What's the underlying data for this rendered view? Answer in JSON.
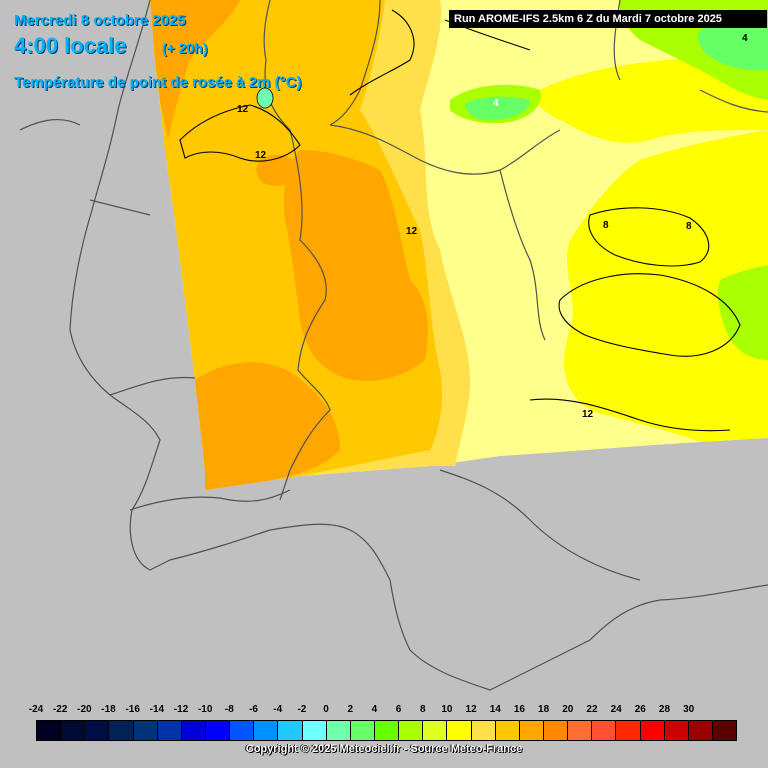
{
  "header": {
    "date": "Mercredi 8 octobre 2025",
    "time": "4:00 locale",
    "lead": "(+ 20h)",
    "parameter": "Température de point de rosée à 2m (°C)"
  },
  "run_banner": "Run AROME-IFS 2.5km 6 Z du Mardi 7 octobre 2025",
  "contour_labels": [
    "12",
    "12",
    "12",
    "12",
    "4",
    "4",
    "8",
    "8"
  ],
  "legend": {
    "ticks": [
      "-24",
      "-22",
      "-20",
      "-18",
      "-16",
      "-14",
      "-12",
      "-10",
      "-8",
      "-6",
      "-4",
      "-2",
      "0",
      "2",
      "4",
      "6",
      "8",
      "10",
      "12",
      "14",
      "16",
      "18",
      "20",
      "22",
      "24",
      "26",
      "28",
      "30"
    ],
    "colors": [
      "#000022",
      "#000a33",
      "#000c44",
      "#002255",
      "#00337a",
      "#0033aa",
      "#0000dd",
      "#0000ff",
      "#0055ff",
      "#0090ff",
      "#20c8ff",
      "#70ffff",
      "#70ffaa",
      "#66ff66",
      "#66ff00",
      "#aaff00",
      "#e0ff20",
      "#ffff00",
      "#ffe04a",
      "#ffc800",
      "#ffa600",
      "#ff8800",
      "#ff6e30",
      "#ff5030",
      "#ff2800",
      "#ff0000",
      "#cc0000",
      "#990000",
      "#5a0000"
    ]
  },
  "copyright": "Copyright © 2025 Meteociel.fr - Source Meteo-France",
  "field_colors": {
    "background": "#c0c0c0",
    "dew_8_10": "#ffff00",
    "dew_10_12": "#ffff8c",
    "dew_12_14": "#ffe04a",
    "dew_14_16": "#ffc800",
    "dew_16_18": "#ffa600",
    "dew_4_6": "#aaff00",
    "dew_2_4": "#66ff66",
    "dew_0_2": "#70ffaa",
    "borders": "#505050"
  }
}
